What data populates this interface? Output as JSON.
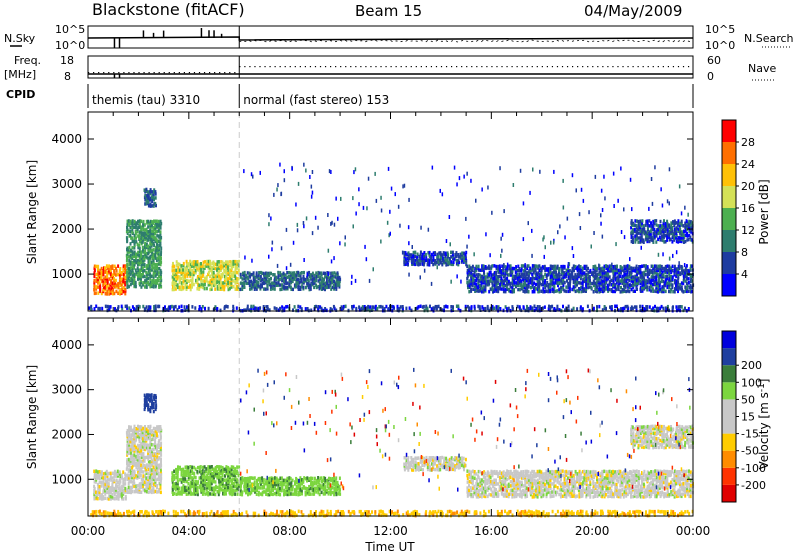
{
  "header": {
    "title": "Blackstone (fitACF)",
    "beam": "Beam 15",
    "date": "04/May/2009"
  },
  "strip_labels": {
    "nsky": "N.Sky",
    "freq": "Freq.",
    "freq_unit": "[MHz]",
    "cpid": "CPID",
    "nsearch": "N.Search",
    "nave": "Nave",
    "nsky_ticks": [
      "10^5",
      "10^0"
    ],
    "nsearch_ticks": [
      "10^5",
      "10^0"
    ],
    "freq_ticks": [
      "18",
      "8"
    ],
    "nave_ticks": [
      "60",
      "0"
    ]
  },
  "cpid_modes": [
    {
      "label": "themis (tau) 3310",
      "start_hour": 0,
      "end_hour": 6
    },
    {
      "label": "normal (fast stereo) 153",
      "start_hour": 6,
      "end_hour": 24
    }
  ],
  "colors": {
    "power_scale": [
      "#0000ff",
      "#1e3ca0",
      "#2e7d6e",
      "#4caf50",
      "#d4e157",
      "#ffc107",
      "#ff6f00",
      "#ff0000"
    ],
    "velocity_scale": [
      "#e00000",
      "#ff3300",
      "#ff8c00",
      "#ffcc00",
      "#c8c8c8",
      "#c8c8c8",
      "#7cd63f",
      "#3a7d3a",
      "#1f3f9f",
      "#0000dd"
    ],
    "ground_scatter": "#bbbbbb"
  },
  "chart_data": [
    {
      "type": "heatmap",
      "panel": "power",
      "title": "",
      "xlabel": "",
      "ylabel": "Slant Range [km]",
      "xlim": [
        0,
        24
      ],
      "ylim": [
        180,
        4600
      ],
      "x_ticks": [
        0,
        4,
        8,
        12,
        16,
        20,
        24
      ],
      "y_ticks": [
        1000,
        2000,
        3000,
        4000
      ],
      "colorbar": {
        "label": "Power [dB]",
        "ticks": [
          "4",
          "8",
          "12",
          "16",
          "20",
          "24",
          "28"
        ],
        "range": [
          0,
          32
        ]
      },
      "regions": [
        {
          "t0": 0.2,
          "t1": 1.5,
          "r0": 550,
          "r1": 1200,
          "level": 26
        },
        {
          "t0": 1.5,
          "t1": 2.9,
          "r0": 700,
          "r1": 2200,
          "level": 12
        },
        {
          "t0": 2.2,
          "t1": 2.7,
          "r0": 2500,
          "r1": 2900,
          "level": 8
        },
        {
          "t0": 3.3,
          "t1": 6.0,
          "r0": 650,
          "r1": 1300,
          "level": 18
        },
        {
          "t0": 6.0,
          "t1": 10.0,
          "r0": 650,
          "r1": 1050,
          "level": 8
        },
        {
          "t0": 12.5,
          "t1": 15.0,
          "r0": 1200,
          "r1": 1500,
          "level": 6
        },
        {
          "t0": 15.0,
          "t1": 24.0,
          "r0": 600,
          "r1": 1200,
          "level": 6
        },
        {
          "t0": 21.5,
          "t1": 24.0,
          "r0": 1700,
          "r1": 2200,
          "level": 6
        },
        {
          "t0": 0.0,
          "t1": 24.0,
          "r0": 180,
          "r1": 300,
          "level": 5
        }
      ]
    },
    {
      "type": "heatmap",
      "panel": "velocity",
      "title": "",
      "xlabel": "Time UT",
      "ylabel": "Slant Range [km]",
      "xlim": [
        0,
        24
      ],
      "ylim": [
        180,
        4600
      ],
      "x_ticks": [
        0,
        4,
        8,
        12,
        16,
        20,
        24
      ],
      "x_tick_labels": [
        "00:00",
        "04:00",
        "08:00",
        "12:00",
        "16:00",
        "20:00",
        "00:00"
      ],
      "y_ticks": [
        1000,
        2000,
        3000,
        4000
      ],
      "colorbar": {
        "label": "Velocity [m s",
        "label_superscript": "-1",
        "label_close": "]",
        "ticks": [
          "-200",
          "-100",
          "-50",
          "-15",
          "15",
          "50",
          "100",
          "200"
        ],
        "range": [
          -250,
          250
        ]
      },
      "regions": [
        {
          "t0": 0.2,
          "t1": 1.5,
          "r0": 550,
          "r1": 1200,
          "vel": 0
        },
        {
          "t0": 1.5,
          "t1": 2.9,
          "r0": 700,
          "r1": 2200,
          "vel": 0
        },
        {
          "t0": 2.2,
          "t1": 2.7,
          "r0": 2500,
          "r1": 2900,
          "vel": 180
        },
        {
          "t0": 3.3,
          "t1": 6.0,
          "r0": 650,
          "r1": 1300,
          "vel": 40
        },
        {
          "t0": 6.0,
          "t1": 10.0,
          "r0": 650,
          "r1": 1050,
          "vel": 35
        },
        {
          "t0": 12.5,
          "t1": 15.0,
          "r0": 1200,
          "r1": 1500,
          "vel": 0
        },
        {
          "t0": 15.0,
          "t1": 24.0,
          "r0": 600,
          "r1": 1200,
          "vel": 0
        },
        {
          "t0": 21.5,
          "t1": 24.0,
          "r0": 1700,
          "r1": 2200,
          "vel": 0
        },
        {
          "t0": 0.0,
          "t1": 24.0,
          "r0": 180,
          "r1": 300,
          "vel": -40
        }
      ]
    }
  ]
}
